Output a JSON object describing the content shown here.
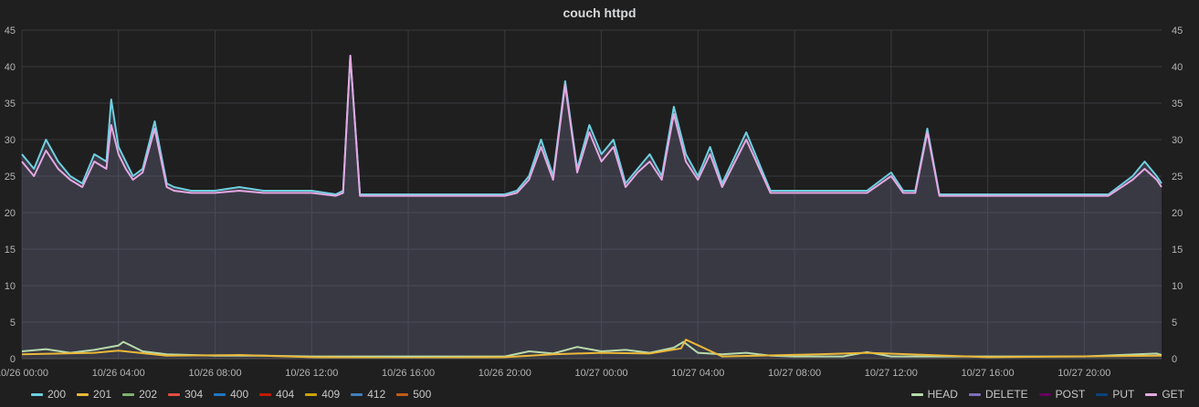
{
  "chart_data": {
    "type": "line",
    "title": "couch httpd",
    "ylim": [
      0,
      45
    ],
    "y_ticks": [
      "0",
      "5",
      "10",
      "15",
      "20",
      "25",
      "30",
      "35",
      "40",
      "45"
    ],
    "x_ticks": [
      "10/26 00:00",
      "10/26 04:00",
      "10/26 08:00",
      "10/26 12:00",
      "10/26 16:00",
      "10/26 20:00",
      "10/27 00:00",
      "10/27 04:00",
      "10/27 08:00",
      "10/27 12:00",
      "10/27 16:00",
      "10/27 20:00"
    ],
    "x_range_hours": [
      0,
      47.2
    ],
    "grid": true,
    "legend_left": [
      {
        "name": "200",
        "color": "#6ed0e0"
      },
      {
        "name": "201",
        "color": "#eab839"
      },
      {
        "name": "202",
        "color": "#7eb26d"
      },
      {
        "name": "304",
        "color": "#e24d42"
      },
      {
        "name": "400",
        "color": "#1f78c1"
      },
      {
        "name": "404",
        "color": "#bf1b00"
      },
      {
        "name": "409",
        "color": "#cca300"
      },
      {
        "name": "412",
        "color": "#447ebc"
      },
      {
        "name": "500",
        "color": "#c15c17"
      }
    ],
    "legend_right": [
      {
        "name": "HEAD",
        "color": "#b7dbab"
      },
      {
        "name": "DELETE",
        "color": "#806eb7"
      },
      {
        "name": "POST",
        "color": "#64005e"
      },
      {
        "name": "PUT",
        "color": "#0a437c"
      },
      {
        "name": "GET",
        "color": "#e5a8e2"
      }
    ],
    "series": [
      {
        "name": "200",
        "color": "#6ed0e0",
        "x": [
          0,
          0.5,
          1,
          1.5,
          2,
          2.5,
          3,
          3.5,
          3.7,
          4,
          4.3,
          4.6,
          5,
          5.5,
          6,
          6.3,
          7,
          8,
          9,
          10,
          11,
          12,
          13,
          13.3,
          13.6,
          14,
          15,
          16,
          17,
          18,
          19,
          20,
          20.5,
          21,
          21.5,
          22,
          22.5,
          23,
          23.5,
          24,
          24.5,
          25,
          25.5,
          26,
          26.5,
          27,
          27.5,
          28,
          28.5,
          29,
          30,
          31,
          32,
          33,
          34,
          35,
          36,
          36.5,
          37,
          37.5,
          38,
          39,
          40,
          41,
          42,
          43,
          44,
          45,
          46,
          46.5,
          47,
          47.2
        ],
        "values": [
          28,
          26,
          30,
          27,
          25,
          24,
          28,
          27,
          35.5,
          29,
          27,
          25,
          26,
          32.5,
          24,
          23.5,
          23,
          23,
          23.5,
          23,
          23,
          23,
          22.5,
          23,
          41.5,
          22.5,
          22.5,
          22.5,
          22.5,
          22.5,
          22.5,
          22.5,
          23,
          25,
          30,
          25,
          38,
          26,
          32,
          28,
          30,
          24,
          26,
          28,
          25,
          34.5,
          28,
          25,
          29,
          24,
          31,
          23,
          23,
          23,
          23,
          23,
          25.5,
          23,
          23,
          31.5,
          22.5,
          22.5,
          22.5,
          22.5,
          22.5,
          22.5,
          22.5,
          22.5,
          25,
          27,
          25,
          24
        ]
      },
      {
        "name": "GET",
        "color": "#e5a8e2",
        "x": [
          0,
          0.5,
          1,
          1.5,
          2,
          2.5,
          3,
          3.5,
          3.7,
          4,
          4.3,
          4.6,
          5,
          5.5,
          6,
          6.3,
          7,
          8,
          9,
          10,
          11,
          12,
          13,
          13.3,
          13.6,
          14,
          15,
          16,
          17,
          18,
          19,
          20,
          20.5,
          21,
          21.5,
          22,
          22.5,
          23,
          23.5,
          24,
          24.5,
          25,
          25.5,
          26,
          26.5,
          27,
          27.5,
          28,
          28.5,
          29,
          30,
          31,
          32,
          33,
          34,
          35,
          36,
          36.5,
          37,
          37.5,
          38,
          39,
          40,
          41,
          42,
          43,
          44,
          45,
          46,
          46.5,
          47,
          47.2
        ],
        "values": [
          27,
          25,
          28.5,
          26,
          24.5,
          23.5,
          27,
          26,
          32,
          28,
          26,
          24.5,
          25.5,
          31.5,
          23.5,
          23,
          22.7,
          22.7,
          23,
          22.7,
          22.7,
          22.7,
          22.3,
          22.7,
          41.5,
          22.3,
          22.3,
          22.3,
          22.3,
          22.3,
          22.3,
          22.3,
          22.7,
          24.5,
          29,
          24.5,
          37.5,
          25.5,
          31,
          27,
          29,
          23.5,
          25.5,
          27,
          24.5,
          33.5,
          27,
          24.5,
          28,
          23.5,
          30,
          22.7,
          22.7,
          22.7,
          22.7,
          22.7,
          25,
          22.7,
          22.7,
          31,
          22.3,
          22.3,
          22.3,
          22.3,
          22.3,
          22.3,
          22.3,
          22.3,
          24.5,
          26,
          24.5,
          23.5
        ]
      },
      {
        "name": "HEAD",
        "color": "#b7dbab",
        "x": [
          0,
          1,
          2,
          3,
          4,
          4.2,
          5,
          6,
          8,
          10,
          12,
          13.5,
          16,
          20,
          21,
          22,
          23,
          24,
          25,
          26,
          27,
          27.4,
          28,
          29,
          30,
          31,
          32,
          34,
          35,
          36,
          38,
          40,
          44,
          47,
          47.2
        ],
        "values": [
          1,
          1.3,
          0.8,
          1.2,
          1.8,
          2.3,
          1,
          0.6,
          0.4,
          0.4,
          0.3,
          0.3,
          0.3,
          0.3,
          1,
          0.7,
          1.6,
          1,
          1.2,
          0.8,
          1.5,
          2.3,
          0.8,
          0.6,
          0.8,
          0.4,
          0.3,
          0.3,
          0.9,
          0.3,
          0.3,
          0.3,
          0.3,
          0.7,
          0.5
        ]
      },
      {
        "name": "201",
        "color": "#eab839",
        "x": [
          0,
          3,
          4,
          6,
          9,
          12,
          16,
          20,
          22,
          24,
          26,
          27.3,
          27.5,
          29,
          33,
          35,
          40,
          47.2
        ],
        "values": [
          0.6,
          0.8,
          1.1,
          0.4,
          0.5,
          0.2,
          0.1,
          0.2,
          0.6,
          0.8,
          0.7,
          1.4,
          2.6,
          0.3,
          0.6,
          0.8,
          0.2,
          0.4
        ]
      }
    ]
  }
}
